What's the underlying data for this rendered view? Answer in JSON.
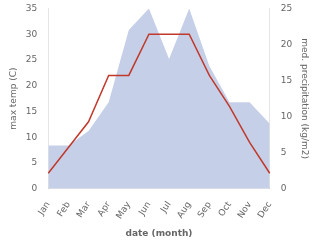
{
  "chart_data": {
    "type": "line",
    "xlabel": "date (month)",
    "ylabel": "max temp (C)",
    "y2label": "med. precipitation (kg/m2)",
    "categories": [
      "Jan",
      "Feb",
      "Mar",
      "Apr",
      "May",
      "Jun",
      "Jul",
      "Aug",
      "Sep",
      "Oct",
      "Nov",
      "Dec"
    ],
    "series": [
      {
        "type": "area",
        "color": "#c5cfe8",
        "axis": "y2",
        "values": [
          6,
          6,
          8,
          12,
          22,
          25,
          18,
          25,
          17,
          12,
          12,
          9
        ]
      },
      {
        "type": "line",
        "color": "#c0392b",
        "values": [
          3,
          8,
          13,
          22,
          22,
          30,
          30,
          30,
          22,
          16,
          9,
          3
        ]
      }
    ],
    "ylim": [
      0,
      35
    ],
    "yticks": [
      0,
      5,
      10,
      15,
      20,
      25,
      30,
      35
    ],
    "y2lim": [
      0,
      25
    ],
    "y2ticks": [
      0,
      5,
      10,
      15,
      20,
      25
    ],
    "grid": false
  }
}
